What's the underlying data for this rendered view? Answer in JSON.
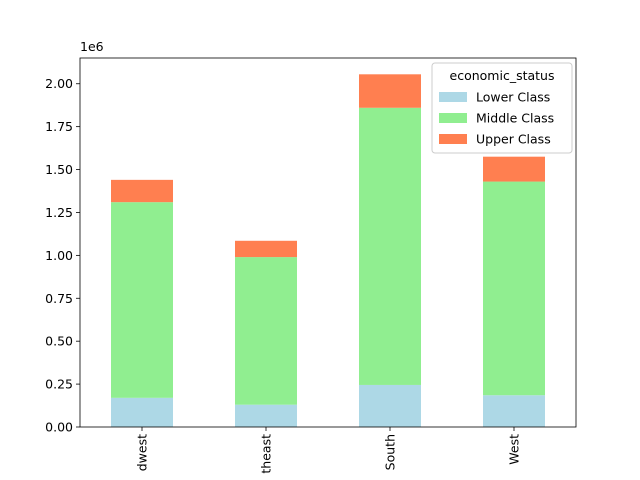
{
  "chart_data": {
    "type": "bar",
    "stacked": true,
    "categories": [
      "Midwest",
      "Northeast",
      "South",
      "West"
    ],
    "category_labels_visible": [
      "dwest",
      "theast",
      "South",
      "West"
    ],
    "series": [
      {
        "name": "Lower Class",
        "color": "#add8e6",
        "values": [
          170000,
          130000,
          245000,
          185000
        ]
      },
      {
        "name": "Middle Class",
        "color": "#90ee90",
        "values": [
          1140000,
          860000,
          1615000,
          1245000
        ]
      },
      {
        "name": "Upper Class",
        "color": "#ff7f50",
        "values": [
          130000,
          95000,
          195000,
          145000
        ]
      }
    ],
    "ylim": [
      0,
      2150000
    ],
    "yticks": [
      0,
      250000,
      500000,
      750000,
      1000000,
      1250000,
      1500000,
      1750000,
      2000000
    ],
    "ytick_labels": [
      "0.00",
      "0.25",
      "0.50",
      "0.75",
      "1.00",
      "1.25",
      "1.50",
      "1.75",
      "2.00"
    ],
    "y_offset_label": "1e6",
    "legend": {
      "title": "economic_status",
      "position": "top-right"
    },
    "title": "",
    "xlabel": "",
    "ylabel": "",
    "grid": false
  }
}
